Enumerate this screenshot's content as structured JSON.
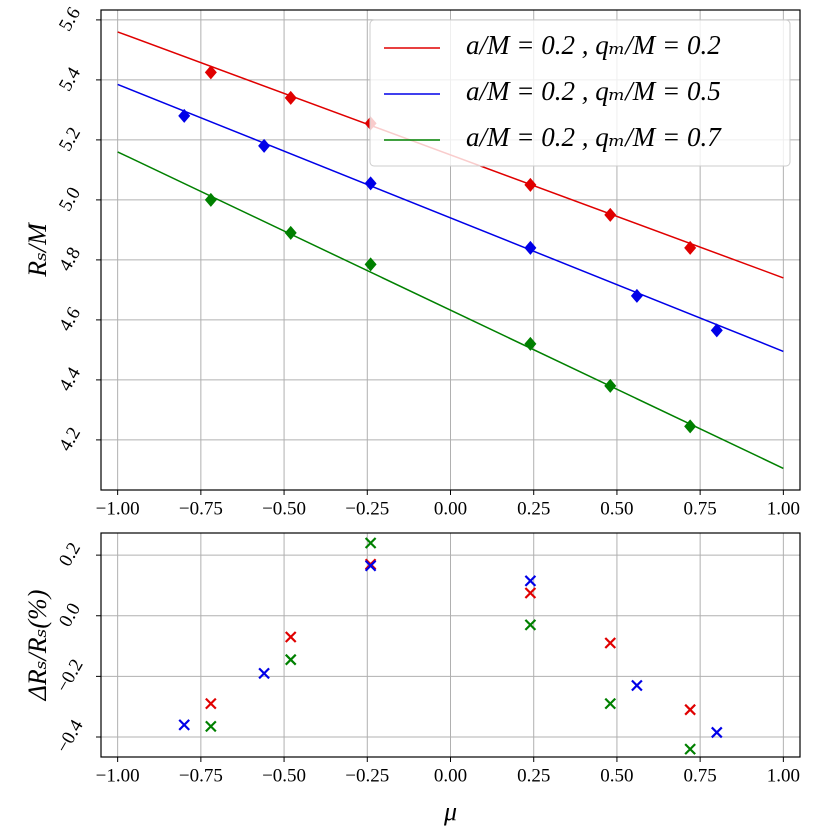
{
  "chart_data": [
    {
      "type": "scatter",
      "ylabel": "Rₛ/M",
      "xlim": [
        -1.05,
        1.05
      ],
      "ylim": [
        4.033,
        5.633
      ],
      "xticks": [
        {
          "value": -1,
          "label": "−1.00"
        },
        {
          "value": -0.75,
          "label": "−0.75"
        },
        {
          "value": -0.5,
          "label": "−0.50"
        },
        {
          "value": -0.25,
          "label": "−0.25"
        },
        {
          "value": 0,
          "label": "0.00"
        },
        {
          "value": 0.25,
          "label": "0.25"
        },
        {
          "value": 0.5,
          "label": "0.50"
        },
        {
          "value": 0.75,
          "label": "0.75"
        },
        {
          "value": 1,
          "label": "1.00"
        }
      ],
      "yticks": [
        {
          "value": 4.2,
          "label": "4.2"
        },
        {
          "value": 4.4,
          "label": "4.4"
        },
        {
          "value": 4.6,
          "label": "4.6"
        },
        {
          "value": 4.8,
          "label": "4.8"
        },
        {
          "value": 5.0,
          "label": "5.0"
        },
        {
          "value": 5.2,
          "label": "5.2"
        },
        {
          "value": 5.4,
          "label": "5.4"
        },
        {
          "value": 5.6,
          "label": "5.6"
        }
      ],
      "grid": true,
      "legend": "upper right",
      "marker": "diamond",
      "series": [
        {
          "name": "a/M = 0.2 ,  qₘ/M = 0.2",
          "color": "#e00000",
          "x": [
            -0.72,
            -0.48,
            -0.24,
            0.24,
            0.48,
            0.72
          ],
          "values": [
            5.425,
            5.34,
            5.255,
            5.05,
            4.95,
            4.84
          ],
          "fit": {
            "x": [
              -1,
              1
            ],
            "values": [
              5.56,
              4.74
            ]
          }
        },
        {
          "name": "a/M = 0.2 ,  qₘ/M = 0.5",
          "color": "#0000e8",
          "x": [
            -0.8,
            -0.56,
            -0.24,
            0.24,
            0.56,
            0.8
          ],
          "values": [
            5.28,
            5.18,
            5.055,
            4.84,
            4.68,
            4.565
          ],
          "fit": {
            "x": [
              -1,
              1
            ],
            "values": [
              5.385,
              4.495
            ]
          }
        },
        {
          "name": "a/M = 0.2 ,  qₘ/M = 0.7",
          "color": "#008000",
          "x": [
            -0.72,
            -0.48,
            -0.24,
            0.24,
            0.48,
            0.72
          ],
          "values": [
            5.0,
            4.89,
            4.785,
            4.52,
            4.38,
            4.245
          ],
          "fit": {
            "x": [
              -1,
              1
            ],
            "values": [
              5.16,
              4.105
            ]
          }
        }
      ]
    },
    {
      "type": "scatter",
      "xlabel": "μ",
      "ylabel": "ΔRₛ/Rₛ(%)",
      "xlim": [
        -1.05,
        1.05
      ],
      "ylim": [
        -0.466,
        0.273
      ],
      "xticks": [
        {
          "value": -1,
          "label": "−1.00"
        },
        {
          "value": -0.75,
          "label": "−0.75"
        },
        {
          "value": -0.5,
          "label": "−0.50"
        },
        {
          "value": -0.25,
          "label": "−0.25"
        },
        {
          "value": 0,
          "label": "0.00"
        },
        {
          "value": 0.25,
          "label": "0.25"
        },
        {
          "value": 0.5,
          "label": "0.50"
        },
        {
          "value": 0.75,
          "label": "0.75"
        },
        {
          "value": 1,
          "label": "1.00"
        }
      ],
      "yticks": [
        {
          "value": -0.4,
          "label": "−0.4"
        },
        {
          "value": -0.2,
          "label": "−0.2"
        },
        {
          "value": 0,
          "label": "0.0"
        },
        {
          "value": 0.2,
          "label": "0.2"
        }
      ],
      "grid": true,
      "marker": "x",
      "series": [
        {
          "color": "#e00000",
          "x": [
            -0.72,
            -0.48,
            -0.24,
            0.24,
            0.48,
            0.72
          ],
          "values": [
            -0.29,
            -0.07,
            0.17,
            0.075,
            -0.09,
            -0.31
          ]
        },
        {
          "color": "#0000e8",
          "x": [
            -0.8,
            -0.56,
            -0.24,
            0.24,
            0.56,
            0.8
          ],
          "values": [
            -0.36,
            -0.19,
            0.165,
            0.115,
            -0.23,
            -0.385
          ]
        },
        {
          "color": "#008000",
          "x": [
            -0.72,
            -0.48,
            -0.24,
            0.24,
            0.48,
            0.72
          ],
          "values": [
            -0.365,
            -0.145,
            0.24,
            -0.03,
            -0.29,
            -0.44
          ]
        }
      ]
    }
  ]
}
